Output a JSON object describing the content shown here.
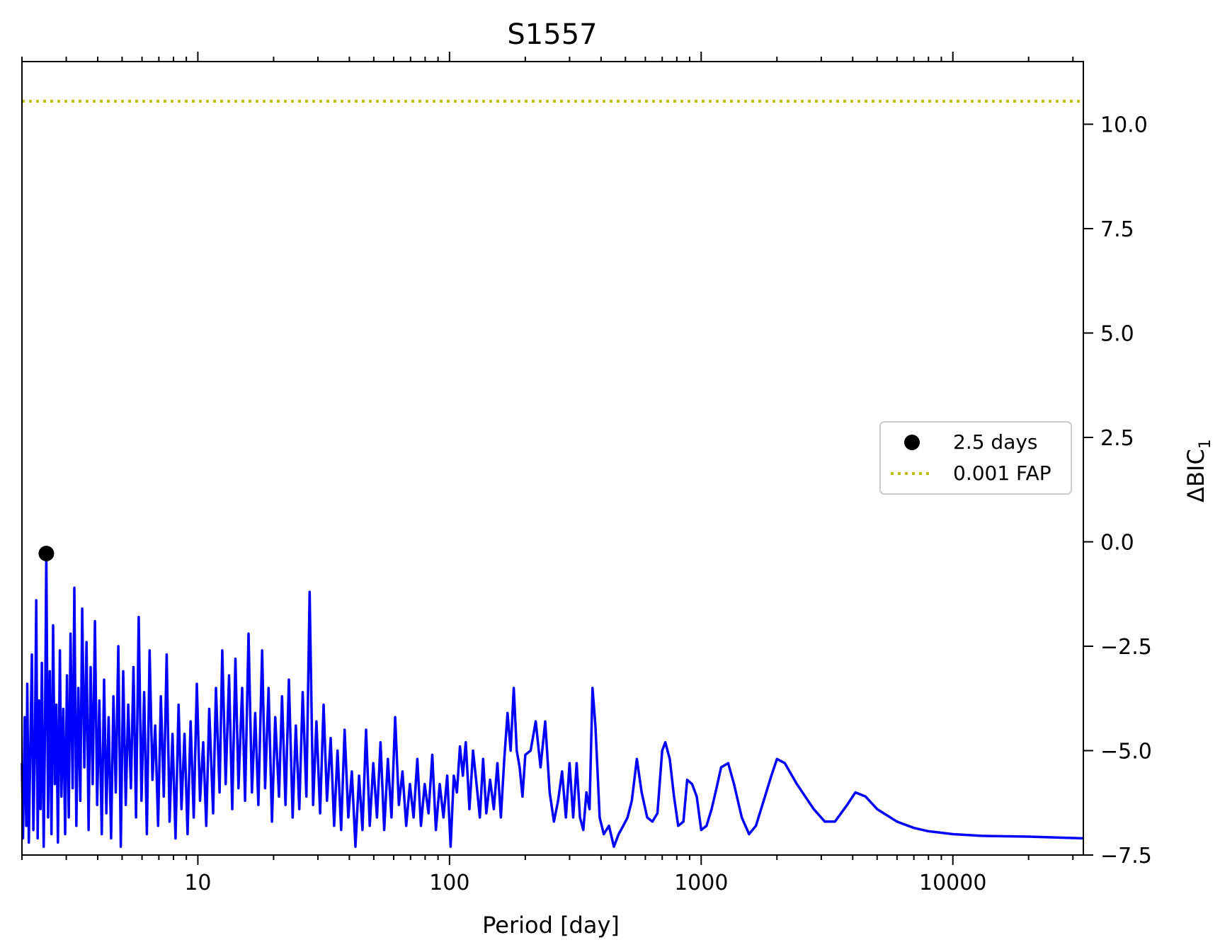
{
  "chart_data": {
    "type": "line",
    "title": "S1557",
    "xlabel": "Period [day]",
    "ylabel": "ΔBIC",
    "ylabel_subscript": "1",
    "x_scale": "log",
    "xlim": [
      2.0,
      33000
    ],
    "ylim": [
      -7.5,
      11.5
    ],
    "x_ticks": [
      {
        "value": 10,
        "label": "10"
      },
      {
        "value": 100,
        "label": "100"
      },
      {
        "value": 1000,
        "label": "1000"
      },
      {
        "value": 10000,
        "label": "10000"
      }
    ],
    "y_ticks": [
      {
        "value": 10.0,
        "label": "10.0"
      },
      {
        "value": 7.5,
        "label": "7.5"
      },
      {
        "value": 5.0,
        "label": "5.0"
      },
      {
        "value": 2.5,
        "label": "2.5"
      },
      {
        "value": 0.0,
        "label": "0.0"
      },
      {
        "value": -2.5,
        "label": "−2.5"
      },
      {
        "value": -5.0,
        "label": "−5.0"
      },
      {
        "value": -7.5,
        "label": "−7.5"
      }
    ],
    "y_axis_position": "right",
    "minor_ticks_top_bottom": true,
    "grid": false,
    "legend_position": "center-right",
    "legend": [
      {
        "label": "2.5 days",
        "marker": "circle",
        "color": "#000000"
      },
      {
        "label": "0.001 FAP",
        "marker": "dotted-line",
        "color": "#bfbf00"
      }
    ],
    "series": [
      {
        "color": "#0000ff",
        "points": [
          [
            2.0,
            -5.3
          ],
          [
            2.02,
            -7.1
          ],
          [
            2.05,
            -4.2
          ],
          [
            2.08,
            -6.8
          ],
          [
            2.1,
            -3.4
          ],
          [
            2.13,
            -7.2
          ],
          [
            2.16,
            -4.9
          ],
          [
            2.19,
            -2.7
          ],
          [
            2.22,
            -6.9
          ],
          [
            2.25,
            -5.0
          ],
          [
            2.28,
            -1.4
          ],
          [
            2.31,
            -7.1
          ],
          [
            2.34,
            -3.8
          ],
          [
            2.37,
            -6.4
          ],
          [
            2.4,
            -2.9
          ],
          [
            2.44,
            -7.3
          ],
          [
            2.47,
            -4.4
          ],
          [
            2.5,
            -0.3
          ],
          [
            2.54,
            -6.6
          ],
          [
            2.58,
            -3.1
          ],
          [
            2.62,
            -7.0
          ],
          [
            2.66,
            -2.0
          ],
          [
            2.7,
            -5.8
          ],
          [
            2.74,
            -3.9
          ],
          [
            2.78,
            -7.2
          ],
          [
            2.83,
            -2.6
          ],
          [
            2.87,
            -6.1
          ],
          [
            2.92,
            -4.0
          ],
          [
            2.97,
            -7.0
          ],
          [
            3.02,
            -3.2
          ],
          [
            3.07,
            -6.6
          ],
          [
            3.12,
            -2.2
          ],
          [
            3.18,
            -5.9
          ],
          [
            3.23,
            -1.1
          ],
          [
            3.29,
            -6.8
          ],
          [
            3.35,
            -3.5
          ],
          [
            3.41,
            -6.2
          ],
          [
            3.47,
            -1.6
          ],
          [
            3.54,
            -5.4
          ],
          [
            3.61,
            -2.4
          ],
          [
            3.68,
            -6.9
          ],
          [
            3.75,
            -3.0
          ],
          [
            3.82,
            -5.8
          ],
          [
            3.9,
            -1.9
          ],
          [
            3.98,
            -6.3
          ],
          [
            4.06,
            -3.8
          ],
          [
            4.15,
            -7.0
          ],
          [
            4.24,
            -3.3
          ],
          [
            4.33,
            -6.5
          ],
          [
            4.42,
            -4.2
          ],
          [
            4.52,
            -7.1
          ],
          [
            4.62,
            -3.7
          ],
          [
            4.72,
            -6.0
          ],
          [
            4.83,
            -2.5
          ],
          [
            4.94,
            -7.3
          ],
          [
            5.05,
            -3.1
          ],
          [
            5.17,
            -6.3
          ],
          [
            5.29,
            -3.9
          ],
          [
            5.42,
            -5.9
          ],
          [
            5.55,
            -3.0
          ],
          [
            5.68,
            -6.6
          ],
          [
            5.82,
            -1.8
          ],
          [
            5.97,
            -6.2
          ],
          [
            6.12,
            -3.6
          ],
          [
            6.27,
            -7.0
          ],
          [
            6.43,
            -2.6
          ],
          [
            6.6,
            -5.7
          ],
          [
            6.77,
            -4.4
          ],
          [
            6.95,
            -6.8
          ],
          [
            7.13,
            -3.7
          ],
          [
            7.32,
            -6.1
          ],
          [
            7.52,
            -2.7
          ],
          [
            7.72,
            -6.7
          ],
          [
            7.93,
            -4.6
          ],
          [
            8.15,
            -7.1
          ],
          [
            8.38,
            -3.9
          ],
          [
            8.61,
            -6.4
          ],
          [
            8.85,
            -4.6
          ],
          [
            9.1,
            -7.0
          ],
          [
            9.36,
            -4.3
          ],
          [
            9.63,
            -6.6
          ],
          [
            9.91,
            -3.4
          ],
          [
            10.2,
            -6.2
          ],
          [
            10.5,
            -4.8
          ],
          [
            10.8,
            -6.8
          ],
          [
            11.1,
            -4.0
          ],
          [
            11.5,
            -6.5
          ],
          [
            11.8,
            -3.5
          ],
          [
            12.2,
            -6.0
          ],
          [
            12.5,
            -2.6
          ],
          [
            12.9,
            -5.8
          ],
          [
            13.3,
            -3.2
          ],
          [
            13.7,
            -6.4
          ],
          [
            14.1,
            -2.8
          ],
          [
            14.5,
            -5.9
          ],
          [
            15.0,
            -3.5
          ],
          [
            15.4,
            -6.2
          ],
          [
            15.9,
            -2.2
          ],
          [
            16.4,
            -6.0
          ],
          [
            16.9,
            -4.1
          ],
          [
            17.4,
            -6.3
          ],
          [
            18.0,
            -2.6
          ],
          [
            18.5,
            -5.9
          ],
          [
            19.1,
            -3.5
          ],
          [
            19.7,
            -6.7
          ],
          [
            20.3,
            -4.2
          ],
          [
            21.0,
            -6.1
          ],
          [
            21.6,
            -3.7
          ],
          [
            22.3,
            -6.3
          ],
          [
            23.0,
            -3.3
          ],
          [
            23.8,
            -6.6
          ],
          [
            24.5,
            -4.4
          ],
          [
            25.3,
            -6.4
          ],
          [
            26.1,
            -3.6
          ],
          [
            27.0,
            -6.1
          ],
          [
            27.8,
            -1.2
          ],
          [
            28.7,
            -6.3
          ],
          [
            29.6,
            -4.3
          ],
          [
            30.6,
            -6.5
          ],
          [
            31.6,
            -3.9
          ],
          [
            32.6,
            -6.2
          ],
          [
            33.7,
            -4.7
          ],
          [
            34.8,
            -6.8
          ],
          [
            35.9,
            -5.0
          ],
          [
            37.1,
            -6.9
          ],
          [
            38.3,
            -4.5
          ],
          [
            39.6,
            -6.6
          ],
          [
            40.9,
            -5.5
          ],
          [
            42.3,
            -7.3
          ],
          [
            43.7,
            -5.6
          ],
          [
            45.1,
            -6.9
          ],
          [
            46.6,
            -4.5
          ],
          [
            48.2,
            -6.8
          ],
          [
            49.8,
            -5.3
          ],
          [
            51.5,
            -6.6
          ],
          [
            53.2,
            -4.8
          ],
          [
            55.0,
            -6.9
          ],
          [
            56.9,
            -5.2
          ],
          [
            58.8,
            -6.6
          ],
          [
            60.8,
            -4.2
          ],
          [
            62.9,
            -6.3
          ],
          [
            65.0,
            -5.5
          ],
          [
            67.3,
            -6.8
          ],
          [
            69.6,
            -5.8
          ],
          [
            72.0,
            -6.6
          ],
          [
            74.5,
            -5.2
          ],
          [
            77.0,
            -6.8
          ],
          [
            79.7,
            -5.8
          ],
          [
            82.5,
            -6.5
          ],
          [
            85.4,
            -5.1
          ],
          [
            88.3,
            -6.9
          ],
          [
            91.4,
            -5.8
          ],
          [
            94.6,
            -6.6
          ],
          [
            97.9,
            -5.6
          ],
          [
            101,
            -7.3
          ],
          [
            104,
            -5.6
          ],
          [
            107,
            -6.0
          ],
          [
            110,
            -4.9
          ],
          [
            113,
            -5.6
          ],
          [
            116,
            -4.8
          ],
          [
            120,
            -6.4
          ],
          [
            124,
            -5.0
          ],
          [
            128,
            -5.8
          ],
          [
            132,
            -6.6
          ],
          [
            136,
            -5.2
          ],
          [
            140,
            -6.5
          ],
          [
            145,
            -5.7
          ],
          [
            150,
            -6.4
          ],
          [
            155,
            -5.3
          ],
          [
            160,
            -6.6
          ],
          [
            165,
            -5.2
          ],
          [
            170,
            -4.1
          ],
          [
            175,
            -5.0
          ],
          [
            180,
            -3.5
          ],
          [
            185,
            -5.0
          ],
          [
            190,
            -5.4
          ],
          [
            195,
            -6.1
          ],
          [
            200,
            -5.1
          ],
          [
            210,
            -5.0
          ],
          [
            220,
            -4.3
          ],
          [
            230,
            -5.4
          ],
          [
            240,
            -4.3
          ],
          [
            250,
            -6.0
          ],
          [
            260,
            -6.7
          ],
          [
            270,
            -6.2
          ],
          [
            280,
            -5.5
          ],
          [
            290,
            -6.6
          ],
          [
            300,
            -5.3
          ],
          [
            310,
            -6.6
          ],
          [
            320,
            -5.3
          ],
          [
            330,
            -6.6
          ],
          [
            340,
            -6.9
          ],
          [
            350,
            -6.0
          ],
          [
            360,
            -6.4
          ],
          [
            370,
            -3.5
          ],
          [
            380,
            -4.4
          ],
          [
            395,
            -6.6
          ],
          [
            410,
            -7.0
          ],
          [
            430,
            -6.8
          ],
          [
            450,
            -7.3
          ],
          [
            470,
            -7.0
          ],
          [
            490,
            -6.8
          ],
          [
            510,
            -6.6
          ],
          [
            530,
            -6.2
          ],
          [
            555,
            -5.2
          ],
          [
            580,
            -6.0
          ],
          [
            610,
            -6.6
          ],
          [
            640,
            -6.7
          ],
          [
            670,
            -6.5
          ],
          [
            700,
            -5.0
          ],
          [
            720,
            -4.8
          ],
          [
            750,
            -5.2
          ],
          [
            780,
            -6.1
          ],
          [
            810,
            -6.8
          ],
          [
            850,
            -6.7
          ],
          [
            880,
            -5.7
          ],
          [
            920,
            -5.8
          ],
          [
            960,
            -6.1
          ],
          [
            1000,
            -6.9
          ],
          [
            1050,
            -6.8
          ],
          [
            1100,
            -6.4
          ],
          [
            1150,
            -5.9
          ],
          [
            1200,
            -5.4
          ],
          [
            1280,
            -5.3
          ],
          [
            1350,
            -5.8
          ],
          [
            1450,
            -6.6
          ],
          [
            1550,
            -7.0
          ],
          [
            1650,
            -6.8
          ],
          [
            1750,
            -6.3
          ],
          [
            1900,
            -5.6
          ],
          [
            2000,
            -5.2
          ],
          [
            2150,
            -5.3
          ],
          [
            2400,
            -5.8
          ],
          [
            2800,
            -6.4
          ],
          [
            3100,
            -6.7
          ],
          [
            3400,
            -6.7
          ],
          [
            3800,
            -6.3
          ],
          [
            4100,
            -6.0
          ],
          [
            4500,
            -6.1
          ],
          [
            5000,
            -6.4
          ],
          [
            6000,
            -6.7
          ],
          [
            7000,
            -6.85
          ],
          [
            8000,
            -6.93
          ],
          [
            10000,
            -7.0
          ],
          [
            13000,
            -7.04
          ],
          [
            20000,
            -7.06
          ],
          [
            33000,
            -7.1
          ]
        ]
      }
    ],
    "fap_line": {
      "value": 10.55,
      "color": "#bfbf00"
    },
    "peak_marker": {
      "x": 2.5,
      "y": -0.28,
      "color": "#000000"
    }
  }
}
